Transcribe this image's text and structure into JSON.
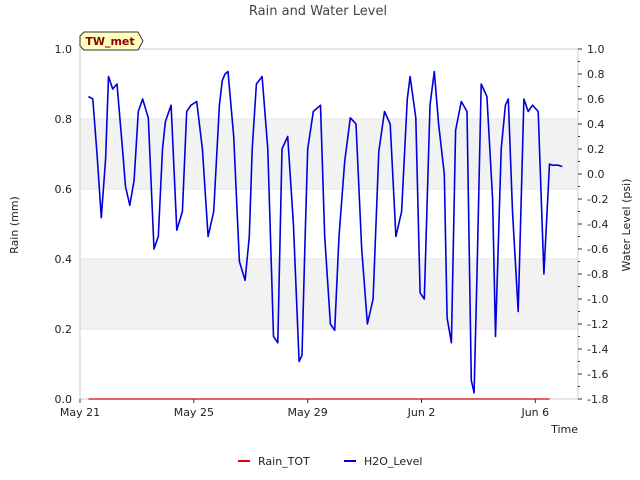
{
  "chart_data": {
    "type": "line",
    "title": "Rain and Water Level",
    "badge": "TW_met",
    "xlabel": "Time",
    "ylabel_left": "Rain (mm)",
    "ylabel_right": "Water Level (psi)",
    "x_ticks": [
      "May 21",
      "May 25",
      "May 29",
      "Jun 2",
      "Jun 6"
    ],
    "x_tick_days": [
      0,
      4,
      8,
      12,
      16
    ],
    "x_range_days": [
      0,
      17.5
    ],
    "y_left_range": [
      0.0,
      1.0
    ],
    "y_left_ticks": [
      "0.0",
      "0.2",
      "0.4",
      "0.6",
      "0.8",
      "1.0"
    ],
    "y_right_range": [
      -1.8,
      1.0
    ],
    "y_right_ticks": [
      "-1.8",
      "-1.6",
      "-1.4",
      "-1.2",
      "-1.0",
      "-0.8",
      "-0.6",
      "-0.4",
      "-0.2",
      "0.0",
      "0.2",
      "0.4",
      "0.6",
      "0.8",
      "1.0"
    ],
    "grid_bands": true,
    "legend_position": "bottom-center",
    "series": [
      {
        "name": "Rain_TOT",
        "axis": "left",
        "color": "#dd0000",
        "x": [
          0.3,
          16.5
        ],
        "values": [
          0.0,
          0.0
        ]
      },
      {
        "name": "H2O_Level",
        "axis": "right",
        "color": "#0000dd",
        "x": [
          0.3,
          0.45,
          0.6,
          0.75,
          0.9,
          1.0,
          1.15,
          1.3,
          1.5,
          1.6,
          1.75,
          1.9,
          2.05,
          2.2,
          2.4,
          2.6,
          2.75,
          2.9,
          3.0,
          3.2,
          3.4,
          3.6,
          3.75,
          3.9,
          4.1,
          4.3,
          4.5,
          4.7,
          4.9,
          5.0,
          5.1,
          5.2,
          5.4,
          5.6,
          5.8,
          5.95,
          6.05,
          6.2,
          6.4,
          6.6,
          6.8,
          6.95,
          7.1,
          7.3,
          7.5,
          7.7,
          7.8,
          7.9,
          8.0,
          8.2,
          8.45,
          8.6,
          8.8,
          8.95,
          9.1,
          9.3,
          9.5,
          9.7,
          9.9,
          10.1,
          10.3,
          10.5,
          10.7,
          10.9,
          11.1,
          11.3,
          11.5,
          11.6,
          11.8,
          11.95,
          12.1,
          12.3,
          12.45,
          12.6,
          12.8,
          12.9,
          13.05,
          13.2,
          13.4,
          13.6,
          13.75,
          13.85,
          13.95,
          14.1,
          14.3,
          14.5,
          14.6,
          14.8,
          14.95,
          15.05,
          15.2,
          15.4,
          15.6,
          15.75,
          15.9,
          16.1,
          16.3,
          16.5,
          16.6,
          16.8,
          16.95
        ],
        "values": [
          0.62,
          0.6,
          0.15,
          -0.35,
          0.12,
          0.78,
          0.68,
          0.72,
          0.18,
          -0.1,
          -0.25,
          -0.05,
          0.5,
          0.6,
          0.45,
          -0.6,
          -0.5,
          0.2,
          0.42,
          0.55,
          -0.45,
          -0.3,
          0.5,
          0.55,
          0.58,
          0.2,
          -0.5,
          -0.3,
          0.55,
          0.75,
          0.8,
          0.82,
          0.3,
          -0.7,
          -0.85,
          -0.5,
          0.2,
          0.72,
          0.78,
          0.2,
          -1.3,
          -1.35,
          0.2,
          0.3,
          -0.4,
          -1.5,
          -1.45,
          -0.6,
          0.2,
          0.5,
          0.55,
          -0.5,
          -1.2,
          -1.25,
          -0.5,
          0.1,
          0.45,
          0.4,
          -0.6,
          -1.2,
          -1.0,
          0.18,
          0.5,
          0.4,
          -0.5,
          -0.3,
          0.6,
          0.78,
          0.45,
          -0.95,
          -1.0,
          0.55,
          0.82,
          0.4,
          0.0,
          -1.15,
          -1.35,
          0.35,
          0.58,
          0.5,
          -1.65,
          -1.75,
          -0.8,
          0.72,
          0.62,
          -0.2,
          -1.3,
          0.2,
          0.55,
          0.6,
          -0.3,
          -1.1,
          0.6,
          0.5,
          0.55,
          0.5,
          -0.8,
          0.08,
          0.07,
          0.07,
          0.06
        ]
      }
    ]
  }
}
